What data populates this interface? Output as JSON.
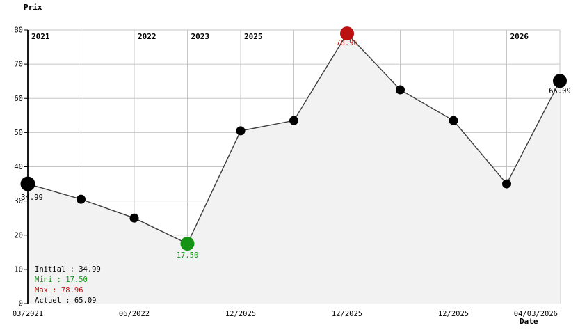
{
  "chart_data": {
    "type": "line",
    "title": "Prix",
    "xlabel": "Date",
    "ylabel": "Prix",
    "ylim": [
      0,
      80
    ],
    "grid": true,
    "y_ticks": [
      0,
      10,
      20,
      30,
      40,
      50,
      60,
      70,
      80
    ],
    "points": [
      {
        "value": 34.99,
        "type": "initial",
        "label": "34.99"
      },
      {
        "value": 30.5,
        "type": "normal"
      },
      {
        "value": 25.0,
        "type": "normal"
      },
      {
        "value": 17.5,
        "type": "min",
        "label": "17.50"
      },
      {
        "value": 50.5,
        "type": "normal"
      },
      {
        "value": 53.5,
        "type": "normal"
      },
      {
        "value": 78.96,
        "type": "max",
        "label": "78.96"
      },
      {
        "value": 62.5,
        "type": "normal"
      },
      {
        "value": 53.5,
        "type": "normal"
      },
      {
        "value": 35.0,
        "type": "normal"
      },
      {
        "value": 65.09,
        "type": "current",
        "label": "65.09"
      }
    ],
    "x_ticks": [
      {
        "index": 0,
        "label": "03/2021",
        "align": "center"
      },
      {
        "index": 2,
        "label": "06/2022",
        "align": "center"
      },
      {
        "index": 4,
        "label": "12/2025",
        "align": "center"
      },
      {
        "index": 6,
        "label": "12/2025",
        "align": "center"
      },
      {
        "index": 8,
        "label": "12/2025",
        "align": "center"
      },
      {
        "index": 10,
        "label": "04/03/2026",
        "align": "end"
      }
    ],
    "year_annotations": [
      {
        "index": 0,
        "label": "2021"
      },
      {
        "index": 2,
        "label": "2022"
      },
      {
        "index": 3,
        "label": "2023"
      },
      {
        "index": 4,
        "label": "2025"
      },
      {
        "index": 9,
        "label": "2026"
      }
    ],
    "legend": [
      {
        "label": "Initial : 34.99",
        "color": "#000000"
      },
      {
        "label": "Mini : 17.50",
        "color": "#149314"
      },
      {
        "label": "Max : 78.96",
        "color": "#bb1111"
      },
      {
        "label": "Actuel : 65.09",
        "color": "#000000"
      }
    ],
    "legend_position": "bottom-left",
    "colors": {
      "line": "#3c3c3c",
      "fill": "#f2f2f2",
      "grid": "#c6c6c6",
      "axis": "#000000",
      "point": "#000000",
      "min": "#149314",
      "max": "#bb1111",
      "text": "#000000"
    }
  }
}
